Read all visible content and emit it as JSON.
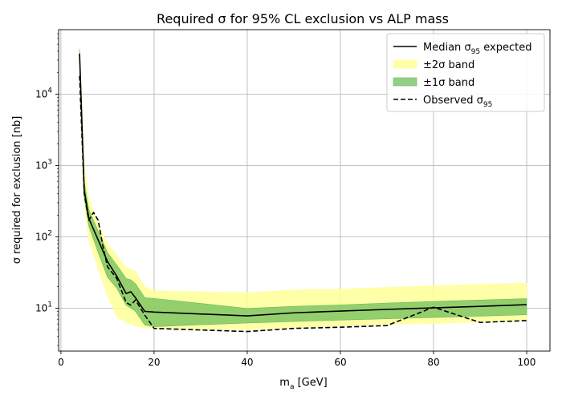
{
  "chart_data": {
    "type": "line",
    "title": "Required σ for 95% CL exclusion vs ALP mass",
    "xlabel": "m_a [GeV]",
    "xlabel_main": "m",
    "xlabel_sub": "a",
    "xlabel_unit": " [GeV]",
    "ylabel": "σ required for exclusion [nb]",
    "xlim": [
      -0.5,
      105
    ],
    "ylim": [
      2.5,
      80000
    ],
    "yscale": "log",
    "grid": true,
    "legend_position": "top-right",
    "x_ticks": [
      0,
      20,
      40,
      60,
      80,
      100
    ],
    "x_tick_labels": [
      "0",
      "20",
      "40",
      "60",
      "80",
      "100"
    ],
    "y_ticks": [
      10,
      100,
      1000,
      10000
    ],
    "y_tick_labels": [
      {
        "base": "10",
        "exp": "1"
      },
      {
        "base": "10",
        "exp": "2"
      },
      {
        "base": "10",
        "exp": "3"
      },
      {
        "base": "10",
        "exp": "4"
      }
    ],
    "legend": [
      {
        "label_main": "Median σ",
        "label_sub": "95",
        "label_tail": " expected",
        "kind": "line",
        "color": "#000000",
        "dash": "solid"
      },
      {
        "label_main": "±2σ band",
        "label_sub": "",
        "label_tail": "",
        "kind": "band",
        "color": "#ffff99"
      },
      {
        "label_main": "±1σ band",
        "label_sub": "",
        "label_tail": "",
        "kind": "band",
        "color": "#66bb55"
      },
      {
        "label_main": "Observed σ",
        "label_sub": "95",
        "label_tail": "",
        "kind": "line",
        "color": "#000000",
        "dash": "dashed"
      }
    ],
    "series": [
      {
        "name": "Median σ95 expected",
        "style": "solid",
        "color": "#000000",
        "x": [
          4,
          5,
          6,
          8,
          10,
          12,
          14,
          15,
          16,
          18,
          20,
          40,
          50,
          60,
          70,
          80,
          90,
          100
        ],
        "y": [
          37000,
          450,
          180,
          90,
          45,
          28,
          16,
          17,
          14,
          9,
          8.8,
          7.8,
          8.6,
          9.1,
          9.6,
          10.1,
          10.6,
          11.2
        ]
      },
      {
        "name": "Observed σ95",
        "style": "dashed",
        "color": "#000000",
        "x": [
          4,
          5,
          6,
          7,
          8,
          9,
          10,
          12,
          14,
          15,
          16,
          18,
          20,
          40,
          50,
          60,
          70,
          80,
          90,
          100
        ],
        "y": [
          18000,
          400,
          170,
          220,
          170,
          75,
          38,
          26,
          12,
          11,
          13,
          8,
          5.2,
          4.7,
          5.2,
          5.4,
          5.7,
          10.3,
          6.3,
          6.7
        ]
      }
    ],
    "bands": [
      {
        "name": "±2σ band",
        "color": "#ffff99",
        "opacity": 0.85,
        "x": [
          4,
          5,
          6,
          8,
          10,
          12,
          14,
          16,
          18,
          20,
          40,
          50,
          60,
          70,
          80,
          90,
          100
        ],
        "upper": [
          50000,
          1000,
          350,
          150,
          80,
          55,
          37,
          33,
          20,
          17.5,
          16.5,
          18,
          18.5,
          19.5,
          20.5,
          21.5,
          22.5
        ],
        "lower": [
          20000,
          300,
          90,
          35,
          15,
          7.5,
          6.3,
          5.6,
          5.3,
          5.2,
          5.0,
          5.3,
          5.6,
          5.9,
          6.1,
          6.4,
          6.7
        ]
      },
      {
        "name": "±1σ band",
        "color": "#66bb55",
        "opacity": 0.7,
        "x": [
          4,
          5,
          6,
          8,
          10,
          12,
          14,
          15,
          16,
          18,
          20,
          40,
          50,
          60,
          70,
          80,
          90,
          100
        ],
        "upper": [
          43000,
          600,
          240,
          120,
          60,
          40,
          26,
          25,
          22,
          14,
          13.7,
          9.9,
          10.6,
          11.1,
          11.8,
          12.4,
          13,
          13.6
        ],
        "lower": [
          30000,
          350,
          140,
          60,
          27,
          19,
          11,
          10,
          9,
          5.8,
          5.5,
          6.2,
          6.5,
          6.8,
          7.1,
          7.4,
          7.7,
          8.1
        ]
      }
    ]
  }
}
